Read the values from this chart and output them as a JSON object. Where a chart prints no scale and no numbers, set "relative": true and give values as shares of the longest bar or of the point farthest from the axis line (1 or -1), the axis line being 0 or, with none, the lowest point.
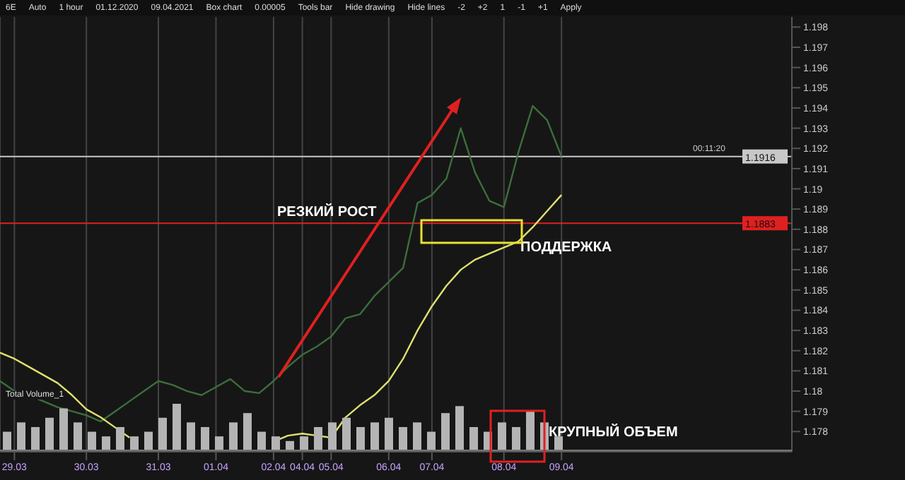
{
  "chart_data": [
    {
      "type": "line",
      "categories": [
        null,
        "29.03",
        null,
        null,
        null,
        null,
        "30.03",
        null,
        null,
        null,
        null,
        "31.03",
        null,
        null,
        null,
        "01.04",
        null,
        null,
        null,
        "02.04",
        null,
        "04.04",
        null,
        "05.04",
        null,
        null,
        null,
        "06.04",
        null,
        null,
        "07.04",
        null,
        null,
        null,
        null,
        "08.04",
        null,
        null,
        null,
        "09.04",
        null,
        null,
        null,
        null,
        null,
        null,
        null,
        null,
        null,
        null,
        null,
        null,
        null,
        null,
        null,
        null
      ],
      "series": [
        {
          "color": "#3c6e3c",
          "values": [
            1.1805,
            1.18,
            1.1798,
            1.1795,
            1.1792,
            1.179,
            1.1788,
            1.1785,
            1.179,
            1.1795,
            1.18,
            1.1805,
            1.1803,
            1.18,
            1.1798,
            1.1802,
            1.1806,
            1.18,
            1.1799,
            1.1805,
            1.1812,
            1.1818,
            1.1822,
            1.1827,
            1.1836,
            1.1838,
            1.1847,
            1.1854,
            1.1861,
            1.1893,
            1.1897,
            1.1905,
            1.193,
            1.1908,
            1.1894,
            1.1891,
            1.1918,
            1.1941,
            1.1934,
            1.1916,
            null,
            null,
            null,
            null,
            null,
            null,
            null,
            null,
            null,
            null,
            null,
            null,
            null,
            null,
            null,
            null
          ]
        },
        {
          "color": "#e0e070",
          "values": [
            1.1819,
            1.1816,
            1.1812,
            1.1808,
            1.1804,
            1.1798,
            1.1791,
            1.1787,
            1.1782,
            1.1777,
            null,
            null,
            null,
            null,
            null,
            null,
            null,
            null,
            null,
            1.1775,
            1.1778,
            1.1779,
            1.1778,
            1.1777,
            1.1787,
            1.1793,
            1.1798,
            1.1805,
            1.1816,
            1.183,
            1.1842,
            1.1852,
            1.186,
            1.1865,
            1.1868,
            1.1871,
            1.1874,
            1.1881,
            1.1889,
            1.1897,
            null,
            null,
            null,
            null,
            null,
            null,
            null,
            null,
            null,
            null,
            null,
            null,
            null,
            null,
            null,
            null
          ]
        }
      ],
      "ylim": [
        1.177,
        1.1985
      ],
      "yticks": [
        1.178,
        1.179,
        1.18,
        1.181,
        1.182,
        1.183,
        1.184,
        1.185,
        1.186,
        1.187,
        1.188,
        1.189,
        1.19,
        1.191,
        1.192,
        1.193,
        1.194,
        1.195,
        1.196,
        1.197,
        1.198
      ],
      "grid": "x",
      "ref_lines": [
        {
          "axis": "y",
          "value": 1.1883,
          "label": "1.1883",
          "color": "#e02020"
        },
        {
          "axis": "y",
          "value": 1.1916,
          "label": "1.1916",
          "color": "#c8c8c8"
        }
      ],
      "annotations": [
        "РЕЗКИЙ РОСТ",
        "ПОДДЕРЖКА",
        "КРУПНЫЙ ОБЪЕМ",
        "00:11:20",
        "6E",
        "Auto",
        "1 hour",
        "01.12.2020",
        "09.04.2021",
        "Box chart",
        "0.00005",
        "Tools bar",
        "Hide drawing",
        "Hide lines",
        "-2",
        "+2",
        "1",
        "-1",
        "+1",
        "Apply"
      ]
    },
    {
      "type": "bar",
      "title": "Total Volume_1",
      "relative": true,
      "color": "#b4b4b4",
      "categories": [
        null,
        null,
        null,
        null,
        null,
        null,
        null,
        null,
        null,
        null,
        null,
        null,
        null,
        null,
        null,
        null,
        null,
        null,
        null,
        null,
        null,
        null,
        null,
        null,
        null,
        null,
        null,
        null,
        null,
        null,
        null,
        null,
        null,
        null,
        null,
        null,
        null,
        null,
        null,
        null,
        null,
        null,
        null,
        null,
        null,
        null,
        null,
        null,
        null,
        null,
        null,
        null,
        null,
        null,
        null,
        null
      ],
      "values": [
        0.4,
        0.6,
        0.5,
        0.7,
        0.9,
        0.6,
        0.4,
        0.3,
        0.5,
        0.3,
        0.4,
        0.7,
        1,
        0.6,
        0.5,
        0.3,
        0.6,
        0.8,
        0.4,
        0.3,
        0.2,
        0.3,
        0.5,
        0.6,
        0.7,
        0.5,
        0.6,
        0.7,
        0.5,
        0.6,
        0.4,
        0.8,
        0.95,
        0.5,
        0.4,
        0.6,
        0.5,
        0.85,
        0.6,
        0.3,
        null,
        null,
        null,
        null,
        null,
        null,
        null,
        null,
        null,
        null,
        null,
        null,
        null,
        null,
        null,
        null
      ]
    }
  ]
}
